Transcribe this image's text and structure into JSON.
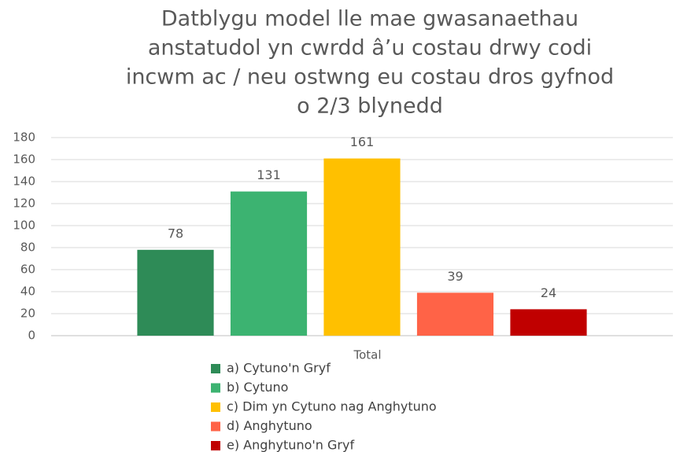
{
  "chart_data": {
    "type": "bar",
    "title": [
      "Datblygu model lle mae gwasanaethau",
      "anstatudol yn cwrdd â’u costau drwy codi",
      "incwm ac / neu ostwng eu costau dros gyfnod",
      "o 2/3 blynedd"
    ],
    "categories": [
      "Total"
    ],
    "series": [
      {
        "name": "a) Cytuno'n Gryf",
        "color": "#2E8B57",
        "values": [
          78
        ]
      },
      {
        "name": "b) Cytuno",
        "color": "#3CB371",
        "values": [
          131
        ]
      },
      {
        "name": "c) Dim yn Cytuno nag Anghytuno",
        "color": "#FFC000",
        "values": [
          161
        ]
      },
      {
        "name": "d) Anghytuno",
        "color": "#FF6347",
        "values": [
          39
        ]
      },
      {
        "name": "e) Anghytuno'n Gryf",
        "color": "#C00000",
        "values": [
          24
        ]
      }
    ],
    "ylim": [
      0,
      180
    ],
    "yticks": [
      0,
      20,
      40,
      60,
      80,
      100,
      120,
      140,
      160,
      180
    ],
    "grid": true,
    "legend": "bottom",
    "data_labels": true
  }
}
